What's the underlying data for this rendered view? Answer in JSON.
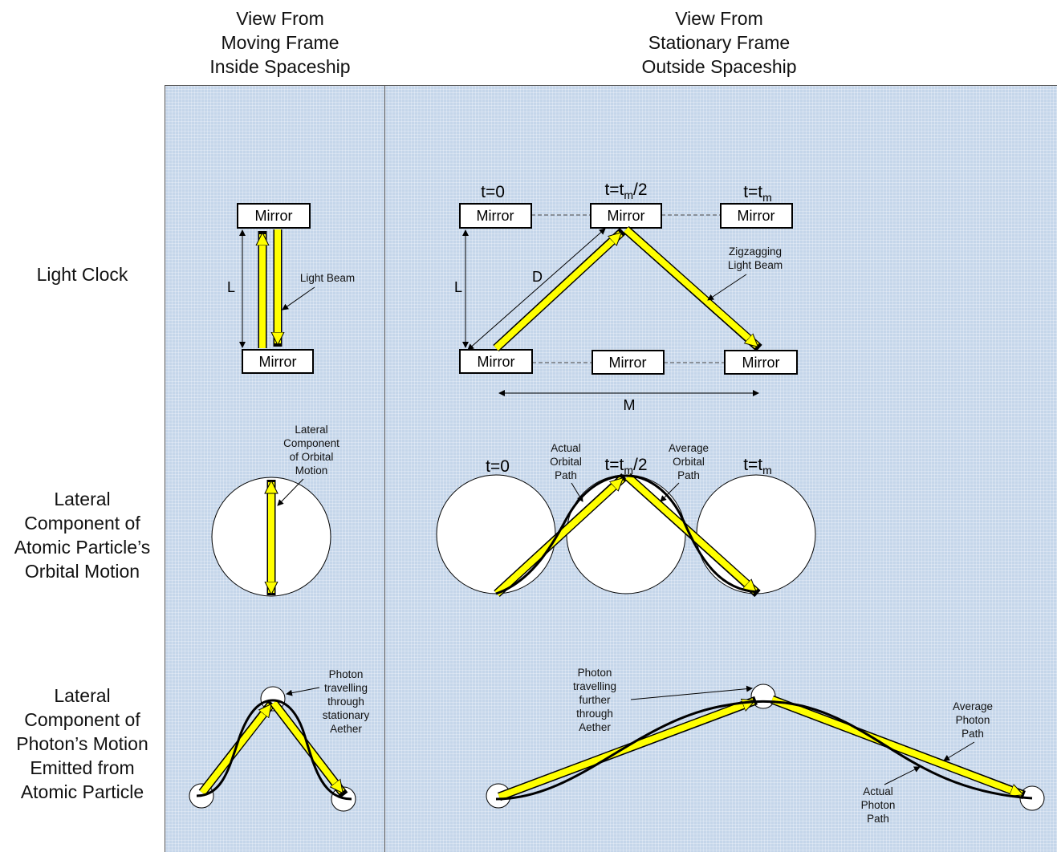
{
  "columns": {
    "moving": [
      "View From",
      "Moving Frame",
      "Inside Spaceship"
    ],
    "stationary": [
      "View From",
      "Stationary Frame",
      "Outside Spaceship"
    ]
  },
  "rows": {
    "light_clock": [
      "Light Clock"
    ],
    "orbital": [
      "Lateral",
      "Component of",
      "Atomic Particle’s",
      "Orbital Motion"
    ],
    "photon": [
      "Lateral",
      "Component of",
      "Photon’s Motion",
      "Emitted from",
      "Atomic Particle"
    ]
  },
  "labels": {
    "mirror": "Mirror",
    "L": "L",
    "D": "D",
    "M": "M",
    "light_beam": "Light Beam",
    "zigzag": [
      "Zigzagging",
      "Light Beam"
    ],
    "lateral_component": [
      "Lateral",
      "Component",
      "of Orbital",
      "Motion"
    ],
    "actual_orbital": [
      "Actual",
      "Orbital",
      "Path"
    ],
    "average_orbital": [
      "Average",
      "Orbital",
      "Path"
    ],
    "photon_stationary": [
      "Photon",
      "travelling",
      "through",
      "stationary",
      "Aether"
    ],
    "photon_further": [
      "Photon",
      "travelling",
      "further",
      "through",
      "Aether"
    ],
    "average_photon": [
      "Average",
      "Photon",
      "Path"
    ],
    "actual_photon": [
      "Actual",
      "Photon",
      "Path"
    ],
    "t0": "t=0",
    "t_prefix": "t=t",
    "t_sub": "m",
    "t_half_suffix": "/2"
  },
  "colors": {
    "panel": "#c5d6ea",
    "beam": "#ffff00",
    "beam_stroke": "#000000"
  }
}
